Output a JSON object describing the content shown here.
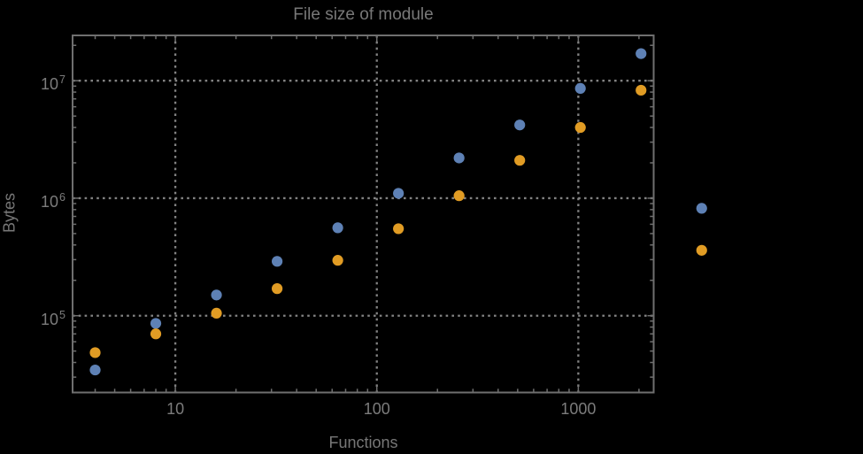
{
  "colors": {
    "background": "#000000",
    "frame": "#6F6F6F",
    "gridline": "#828282",
    "text": "#7A7A7A",
    "series_blue": "#5E81B5",
    "series_orange": "#E19C24"
  },
  "chart_data": {
    "type": "scatter",
    "title": "File size of module",
    "xlabel": "Functions",
    "ylabel": "Bytes",
    "x_scale": "log",
    "y_scale": "log",
    "grid": "dotted",
    "legend": "none",
    "x_range": [
      3.09,
      2366
    ],
    "y_range": [
      22200,
      24300000
    ],
    "x_ticks": [
      {
        "label": "10",
        "value": 10
      },
      {
        "label": "100",
        "value": 100
      },
      {
        "label": "1000",
        "value": 1000
      }
    ],
    "y_ticks": [
      {
        "base": "10",
        "exp": "5",
        "value": 100000
      },
      {
        "base": "10",
        "exp": "6",
        "value": 1000000
      },
      {
        "base": "10",
        "exp": "7",
        "value": 10000000
      }
    ],
    "x": [
      4,
      8,
      16,
      32,
      64,
      128,
      256,
      512,
      1024,
      2048,
      4096
    ],
    "series": [
      {
        "name": "series-blue",
        "color": "#5E81B5",
        "values": [
          34500,
          86000,
          150000,
          290000,
          560000,
          1100000,
          2200000,
          4200000,
          8600000,
          17000000,
          820000
        ]
      },
      {
        "name": "series-orange",
        "color": "#E19C24",
        "values": [
          48500,
          70000,
          105000,
          170000,
          296000,
          550000,
          1050000,
          2100000,
          4000000,
          8300000,
          360000
        ]
      }
    ]
  }
}
